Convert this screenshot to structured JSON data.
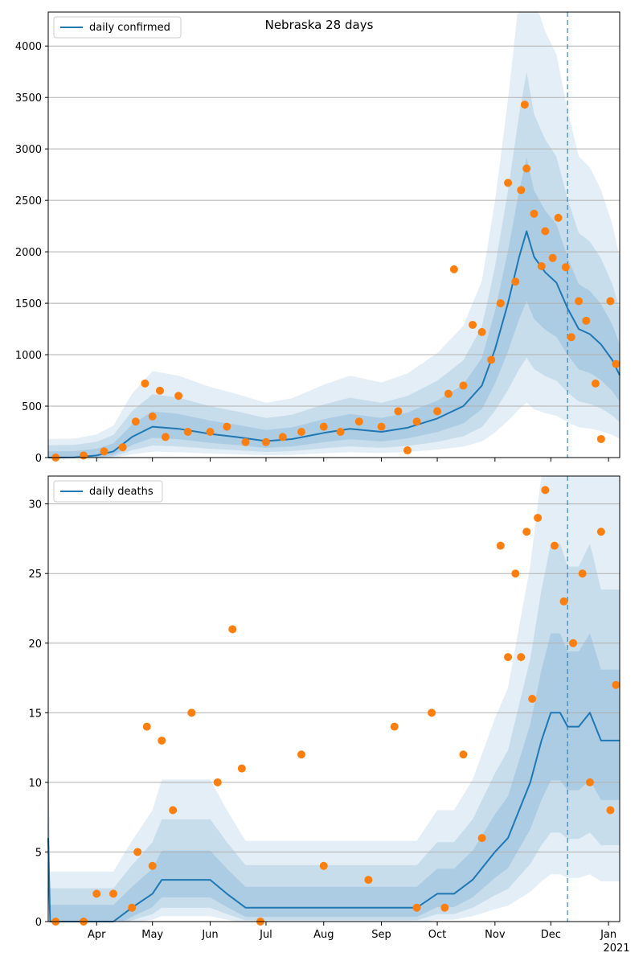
{
  "chart_data": [
    {
      "type": "line",
      "title": "Nebraska 28 days",
      "legend": [
        "daily confirmed"
      ],
      "legend_position": "top-left",
      "grid": "y",
      "ylim": [
        0,
        4330
      ],
      "yticks": [
        0,
        500,
        1000,
        1500,
        2000,
        2500,
        3000,
        3500,
        4000
      ],
      "xlim": [
        "2020-03-06",
        "2021-01-07"
      ],
      "vline": "2020-12-10",
      "colors": {
        "line": "#1f77b4",
        "points": "#ff7f0e",
        "band": "#1f77b4",
        "vline": "#1f77b4"
      },
      "series": [
        {
          "name": "daily confirmed",
          "kind": "line",
          "x": [
            "2020-03-06",
            "2020-03-20",
            "2020-04-01",
            "2020-04-10",
            "2020-04-20",
            "2020-05-01",
            "2020-05-15",
            "2020-06-01",
            "2020-06-15",
            "2020-07-01",
            "2020-07-15",
            "2020-08-01",
            "2020-08-15",
            "2020-09-01",
            "2020-09-15",
            "2020-10-01",
            "2020-10-15",
            "2020-10-25",
            "2020-11-01",
            "2020-11-08",
            "2020-11-14",
            "2020-11-18",
            "2020-11-22",
            "2020-11-28",
            "2020-12-04",
            "2020-12-10",
            "2020-12-16",
            "2020-12-22",
            "2020-12-28",
            "2021-01-03",
            "2021-01-07"
          ],
          "y": [
            0,
            2,
            20,
            60,
            200,
            300,
            280,
            230,
            200,
            160,
            180,
            240,
            280,
            250,
            290,
            380,
            500,
            700,
            1050,
            1500,
            1950,
            2200,
            1950,
            1800,
            1700,
            1450,
            1250,
            1200,
            1100,
            950,
            800
          ]
        },
        {
          "name": "observed",
          "kind": "points",
          "x": [
            "2020-03-10",
            "2020-03-25",
            "2020-04-05",
            "2020-04-15",
            "2020-04-22",
            "2020-04-27",
            "2020-05-01",
            "2020-05-05",
            "2020-05-08",
            "2020-05-15",
            "2020-05-20",
            "2020-06-01",
            "2020-06-10",
            "2020-06-20",
            "2020-07-01",
            "2020-07-10",
            "2020-07-20",
            "2020-08-01",
            "2020-08-10",
            "2020-08-20",
            "2020-09-01",
            "2020-09-10",
            "2020-09-15",
            "2020-09-20",
            "2020-10-01",
            "2020-10-07",
            "2020-10-10",
            "2020-10-15",
            "2020-10-20",
            "2020-10-25",
            "2020-10-30",
            "2020-11-04",
            "2020-11-08",
            "2020-11-12",
            "2020-11-15",
            "2020-11-17",
            "2020-11-18",
            "2020-11-22",
            "2020-11-26",
            "2020-11-28",
            "2020-12-02",
            "2020-12-05",
            "2020-12-09",
            "2020-12-12",
            "2020-12-16",
            "2020-12-20",
            "2020-12-25",
            "2020-12-28",
            "2021-01-02",
            "2021-01-05"
          ],
          "y": [
            0,
            20,
            60,
            100,
            350,
            720,
            400,
            650,
            200,
            600,
            250,
            250,
            300,
            150,
            150,
            200,
            250,
            300,
            250,
            350,
            300,
            450,
            70,
            350,
            450,
            620,
            1830,
            700,
            1290,
            1220,
            950,
            1500,
            2670,
            1710,
            2600,
            3430,
            2810,
            2370,
            1860,
            2200,
            1940,
            2330,
            1850,
            1170,
            1520,
            1330,
            720,
            180,
            1520,
            910
          ]
        }
      ]
    },
    {
      "type": "line",
      "title": "",
      "legend": [
        "daily deaths"
      ],
      "legend_position": "top-left",
      "grid": "y",
      "ylim": [
        0,
        32
      ],
      "yticks": [
        0,
        5,
        10,
        15,
        20,
        25,
        30
      ],
      "xlim": [
        "2020-03-06",
        "2021-01-07"
      ],
      "xticks": [
        {
          "date": "2020-04-01",
          "label": "Apr"
        },
        {
          "date": "2020-05-01",
          "label": "May"
        },
        {
          "date": "2020-06-01",
          "label": "Jun"
        },
        {
          "date": "2020-07-01",
          "label": "Jul"
        },
        {
          "date": "2020-08-01",
          "label": "Aug"
        },
        {
          "date": "2020-09-01",
          "label": "Sep"
        },
        {
          "date": "2020-10-01",
          "label": "Oct"
        },
        {
          "date": "2020-11-01",
          "label": "Nov"
        },
        {
          "date": "2020-12-01",
          "label": "Dec"
        },
        {
          "date": "2021-01-01",
          "label": "Jan"
        }
      ],
      "year_label": "2021",
      "vline": "2020-12-10",
      "colors": {
        "line": "#1f77b4",
        "points": "#ff7f0e",
        "band": "#1f77b4",
        "vline": "#1f77b4"
      },
      "series": [
        {
          "name": "daily deaths",
          "kind": "line",
          "x": [
            "2020-03-06",
            "2020-03-07",
            "2020-04-10",
            "2020-04-20",
            "2020-05-01",
            "2020-05-06",
            "2020-05-15",
            "2020-06-01",
            "2020-06-10",
            "2020-06-20",
            "2020-07-01",
            "2020-07-20",
            "2020-08-01",
            "2020-08-15",
            "2020-09-01",
            "2020-09-10",
            "2020-09-20",
            "2020-10-01",
            "2020-10-10",
            "2020-10-20",
            "2020-11-01",
            "2020-11-08",
            "2020-11-14",
            "2020-11-20",
            "2020-11-26",
            "2020-12-01",
            "2020-12-06",
            "2020-12-10",
            "2020-12-16",
            "2020-12-22",
            "2020-12-28",
            "2021-01-03",
            "2021-01-07"
          ],
          "y": [
            6,
            0,
            0,
            1,
            2,
            3,
            3,
            3,
            2,
            1,
            1,
            1,
            1,
            1,
            1,
            1,
            1,
            2,
            2,
            3,
            5,
            6,
            8,
            10,
            13,
            15,
            15,
            14,
            14,
            15,
            13,
            13,
            13
          ]
        },
        {
          "name": "observed",
          "kind": "points",
          "x": [
            "2020-03-10",
            "2020-03-25",
            "2020-04-01",
            "2020-04-10",
            "2020-04-20",
            "2020-04-23",
            "2020-04-28",
            "2020-05-01",
            "2020-05-06",
            "2020-05-12",
            "2020-05-22",
            "2020-06-05",
            "2020-06-13",
            "2020-06-18",
            "2020-06-28",
            "2020-07-20",
            "2020-08-01",
            "2020-08-25",
            "2020-09-08",
            "2020-09-20",
            "2020-09-28",
            "2020-10-05",
            "2020-10-15",
            "2020-10-25",
            "2020-11-04",
            "2020-11-08",
            "2020-11-12",
            "2020-11-15",
            "2020-11-18",
            "2020-11-21",
            "2020-11-24",
            "2020-11-28",
            "2020-12-03",
            "2020-12-08",
            "2020-12-13",
            "2020-12-18",
            "2020-12-22",
            "2020-12-28",
            "2021-01-02",
            "2021-01-05"
          ],
          "y": [
            0,
            0,
            2,
            2,
            1,
            5,
            14,
            4,
            13,
            8,
            15,
            10,
            21,
            11,
            0,
            12,
            4,
            3,
            14,
            1,
            15,
            1,
            12,
            6,
            27,
            19,
            25,
            19,
            28,
            16,
            29,
            31,
            27,
            23,
            20,
            25,
            10,
            28,
            8,
            17
          ]
        }
      ]
    }
  ]
}
